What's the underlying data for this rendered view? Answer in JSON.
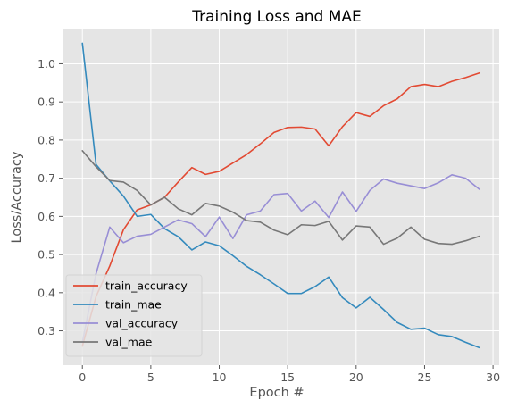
{
  "chart_data": {
    "type": "line",
    "title": "Training Loss and MAE",
    "xlabel": "Epoch #",
    "ylabel": "Loss/Accuracy",
    "xlim": [
      -1.45,
      30.45
    ],
    "ylim": [
      0.21,
      1.09
    ],
    "xticks": [
      0,
      5,
      10,
      15,
      20,
      25,
      30
    ],
    "yticks": [
      0.3,
      0.4,
      0.5,
      0.6,
      0.7,
      0.8,
      0.9,
      1.0
    ],
    "grid": true,
    "legend_position": "lower-left",
    "x": [
      0,
      1,
      2,
      3,
      4,
      5,
      6,
      7,
      8,
      9,
      10,
      11,
      12,
      13,
      14,
      15,
      16,
      17,
      18,
      19,
      20,
      21,
      22,
      23,
      24,
      25,
      26,
      27,
      28,
      29
    ],
    "series": [
      {
        "name": "train_accuracy",
        "color": "#E24A33",
        "values": [
          0.26,
          0.39,
          0.47,
          0.565,
          0.617,
          0.63,
          0.65,
          0.69,
          0.728,
          0.71,
          0.718,
          0.74,
          0.762,
          0.79,
          0.82,
          0.833,
          0.834,
          0.829,
          0.785,
          0.835,
          0.872,
          0.862,
          0.89,
          0.908,
          0.94,
          0.946,
          0.94,
          0.954,
          0.964,
          0.976
        ]
      },
      {
        "name": "train_mae",
        "color": "#348ABD",
        "values": [
          1.054,
          0.736,
          0.693,
          0.653,
          0.6,
          0.605,
          0.568,
          0.547,
          0.512,
          0.533,
          0.523,
          0.497,
          0.469,
          0.447,
          0.423,
          0.398,
          0.398,
          0.416,
          0.441,
          0.387,
          0.36,
          0.388,
          0.356,
          0.322,
          0.304,
          0.307,
          0.29,
          0.285,
          0.27,
          0.256
        ]
      },
      {
        "name": "val_accuracy",
        "color": "#988ED5",
        "values": [
          0.27,
          0.45,
          0.572,
          0.531,
          0.548,
          0.553,
          0.572,
          0.591,
          0.581,
          0.547,
          0.598,
          0.542,
          0.604,
          0.614,
          0.657,
          0.66,
          0.614,
          0.64,
          0.597,
          0.664,
          0.613,
          0.668,
          0.698,
          0.687,
          0.68,
          0.673,
          0.688,
          0.709,
          0.7,
          0.671
        ]
      },
      {
        "name": "val_mae",
        "color": "#777777",
        "values": [
          0.772,
          0.73,
          0.694,
          0.69,
          0.668,
          0.63,
          0.65,
          0.62,
          0.604,
          0.634,
          0.627,
          0.611,
          0.589,
          0.585,
          0.564,
          0.552,
          0.578,
          0.576,
          0.587,
          0.538,
          0.575,
          0.572,
          0.527,
          0.543,
          0.572,
          0.54,
          0.529,
          0.527,
          0.536,
          0.548
        ]
      }
    ]
  }
}
